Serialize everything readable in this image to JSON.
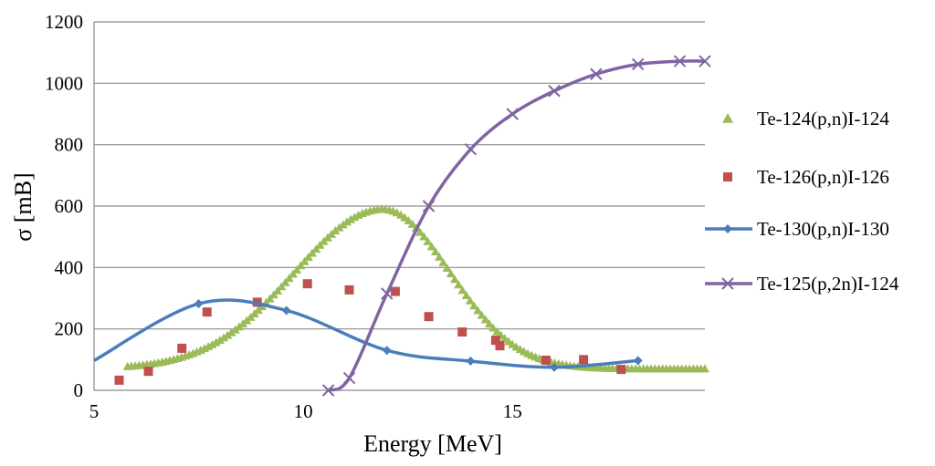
{
  "chart_data": {
    "type": "scatter",
    "title": "",
    "xlabel": "Energy [MeV]",
    "ylabel": "σ [mB]",
    "xlim": [
      5,
      19.6
    ],
    "ylim": [
      0,
      1200
    ],
    "xticks": [
      5,
      10,
      15
    ],
    "yticks": [
      0,
      200,
      400,
      600,
      800,
      1000,
      1200
    ],
    "grid": "horizontal",
    "legend_position": "right",
    "series": [
      {
        "name": "Te-124(p,n)I-124",
        "style": "triangle-dense",
        "color": "#9BBB59",
        "gaussian": {
          "peak_x": 11.9,
          "peak_y": 590,
          "sigma_left": 2.1,
          "sigma_right": 1.6,
          "baseline": 70,
          "x_start": 5.8,
          "x_end": 19.6
        }
      },
      {
        "name": "Te-126(p,n)I-126",
        "style": "square",
        "color": "#C0504D",
        "x": [
          5.6,
          6.3,
          7.1,
          7.7,
          8.9,
          10.1,
          11.1,
          12.2,
          13.0,
          13.8,
          14.6,
          14.7,
          15.8,
          16.7,
          17.6
        ],
        "y": [
          33,
          62,
          137,
          255,
          287,
          347,
          327,
          322,
          240,
          190,
          163,
          145,
          98,
          100,
          68
        ]
      },
      {
        "name": "Te-130(p,n)I-130",
        "style": "diamond-line",
        "color": "#4A7EBB",
        "x": [
          5.0,
          7.5,
          9.6,
          12.0,
          14.0,
          16.0,
          18.0
        ],
        "y": [
          97,
          282,
          260,
          130,
          95,
          75,
          97
        ]
      },
      {
        "name": "Te-125(p,2n)I-124",
        "style": "x-line",
        "color": "#8064A2",
        "x": [
          10.6,
          11.1,
          12.0,
          13.0,
          14.0,
          15.0,
          16.0,
          17.0,
          18.0,
          19.0,
          19.6
        ],
        "y": [
          0,
          40,
          315,
          600,
          785,
          900,
          975,
          1030,
          1062,
          1072,
          1072
        ]
      }
    ]
  }
}
